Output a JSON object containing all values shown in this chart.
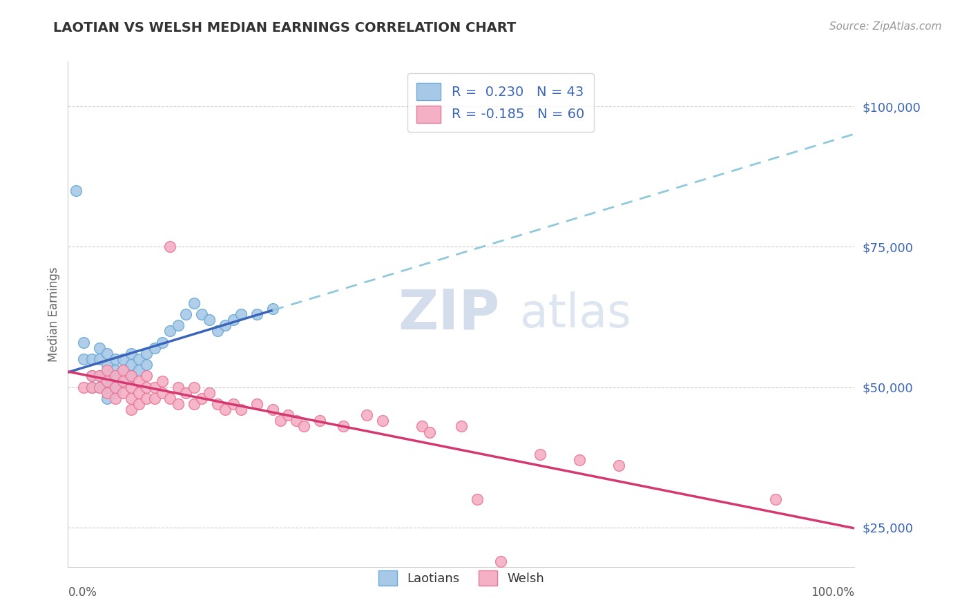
{
  "title": "LAOTIAN VS WELSH MEDIAN EARNINGS CORRELATION CHART",
  "source_text": "Source: ZipAtlas.com",
  "ylabel": "Median Earnings",
  "yticks": [
    25000,
    50000,
    75000,
    100000
  ],
  "ytick_labels": [
    "$25,000",
    "$50,000",
    "$75,000",
    "$100,000"
  ],
  "xmin": 0.0,
  "xmax": 100.0,
  "ymin": 18000,
  "ymax": 108000,
  "laotians_R": 0.23,
  "laotians_N": 43,
  "welsh_R": -0.185,
  "welsh_N": 60,
  "laotian_color": "#a8c8e8",
  "laotian_edge": "#6aaad4",
  "welsh_color": "#f4b0c4",
  "welsh_edge": "#e87898",
  "laotian_line_color": "#3a65b8",
  "welsh_line_color": "#d43870",
  "dashed_line_color": "#90c8dc",
  "watermark_color": "#ccd8e8",
  "background_color": "#ffffff",
  "laotians_x": [
    1,
    2,
    2,
    3,
    3,
    3,
    4,
    4,
    4,
    4,
    5,
    5,
    5,
    5,
    5,
    6,
    6,
    6,
    6,
    7,
    7,
    7,
    8,
    8,
    8,
    9,
    9,
    10,
    10,
    11,
    12,
    13,
    14,
    15,
    16,
    17,
    18,
    19,
    20,
    21,
    22,
    24,
    26
  ],
  "laotians_y": [
    85000,
    58000,
    55000,
    55000,
    52000,
    50000,
    57000,
    55000,
    52000,
    50000,
    56000,
    54000,
    52000,
    50000,
    48000,
    55000,
    53000,
    51000,
    49000,
    55000,
    53000,
    51000,
    56000,
    54000,
    52000,
    55000,
    53000,
    56000,
    54000,
    57000,
    58000,
    60000,
    61000,
    63000,
    65000,
    63000,
    62000,
    60000,
    61000,
    62000,
    63000,
    63000,
    64000
  ],
  "welsh_x": [
    2,
    3,
    3,
    4,
    4,
    5,
    5,
    5,
    6,
    6,
    6,
    7,
    7,
    7,
    8,
    8,
    8,
    8,
    9,
    9,
    9,
    10,
    10,
    10,
    11,
    11,
    12,
    12,
    13,
    13,
    14,
    14,
    15,
    16,
    16,
    17,
    18,
    19,
    20,
    21,
    22,
    24,
    26,
    27,
    28,
    29,
    30,
    32,
    35,
    38,
    40,
    45,
    46,
    50,
    52,
    55,
    60,
    65,
    70,
    90
  ],
  "welsh_y": [
    50000,
    52000,
    50000,
    52000,
    50000,
    53000,
    51000,
    49000,
    52000,
    50000,
    48000,
    53000,
    51000,
    49000,
    52000,
    50000,
    48000,
    46000,
    51000,
    49000,
    47000,
    52000,
    50000,
    48000,
    50000,
    48000,
    51000,
    49000,
    75000,
    48000,
    50000,
    47000,
    49000,
    50000,
    47000,
    48000,
    49000,
    47000,
    46000,
    47000,
    46000,
    47000,
    46000,
    44000,
    45000,
    44000,
    43000,
    44000,
    43000,
    45000,
    44000,
    43000,
    42000,
    43000,
    30000,
    19000,
    38000,
    37000,
    36000,
    30000
  ]
}
